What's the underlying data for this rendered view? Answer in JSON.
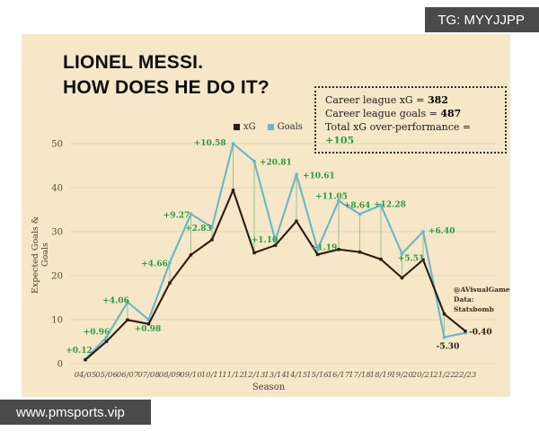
{
  "overlays": {
    "top_right_badge": "TG: MYYJJPP",
    "bottom_left_badge": "www.pmsports.vip"
  },
  "title": {
    "line1": "LIONEL MESSI.",
    "line2": "HOW DOES HE DO IT?"
  },
  "stats_box": {
    "rows": [
      {
        "label": "Career league xG = ",
        "value": "382",
        "value_color": "#000000"
      },
      {
        "label": "Career league goals = ",
        "value": "487",
        "value_color": "#000000"
      },
      {
        "label": "Total xG over-performance = ",
        "value": "+105",
        "value_color": "#2a9d45"
      }
    ]
  },
  "legend": [
    {
      "label": "xG",
      "color": "#2e1b10"
    },
    {
      "label": "Goals",
      "color": "#6ab7c6"
    }
  ],
  "watermark": {
    "line1": "@AVisualGame",
    "line2": "Data: Statsbomb"
  },
  "chart_data": {
    "type": "line",
    "x": [
      "04/05",
      "05/06",
      "06/07",
      "07/08",
      "08/09",
      "09/10",
      "10/11",
      "11/12",
      "12/13",
      "13/14",
      "14/15",
      "15/16",
      "16/17",
      "17/18",
      "18/19",
      "19/20",
      "20/21",
      "21/22",
      "22/23"
    ],
    "series": [
      {
        "name": "xG",
        "color": "#2e1b10",
        "values": [
          0.88,
          5.04,
          9.94,
          9.02,
          18.34,
          24.73,
          28.17,
          39.42,
          25.19,
          26.9,
          32.39,
          24.81,
          25.95,
          25.36,
          23.72,
          19.49,
          23.6,
          11.3,
          7.4
        ]
      },
      {
        "name": "Goals",
        "color": "#6ab7c6",
        "values": [
          1,
          6,
          14,
          10,
          23,
          34,
          31,
          50,
          46,
          28,
          43,
          26,
          37,
          34,
          36,
          25,
          30,
          6,
          7
        ]
      }
    ],
    "diff_labels": [
      "+0.12",
      "+0.96",
      "+4.06",
      "+0.98",
      "+4.66",
      "+9.27",
      "+2.83",
      "+10.58",
      "+20.81",
      "+1.10",
      "+10.61",
      "+1.19",
      "+11.05",
      "+8.64",
      "+12.28",
      "+5.51",
      "+6.40",
      "-5.30",
      "-0.40"
    ],
    "xlabel": "Season",
    "ylabel": "Expected Goals & Goals",
    "yticks": [
      0,
      10,
      20,
      30,
      40,
      50
    ],
    "ylim": [
      0,
      52
    ],
    "grid": "horizontal",
    "legend_position": "top",
    "annotation_color_positive": "#2a9d45",
    "annotation_color_negative": "#2e1b10",
    "connector_color": "#9fbe93",
    "gridline_color": "#e4d5b5",
    "tick_color": "#554a3d"
  }
}
